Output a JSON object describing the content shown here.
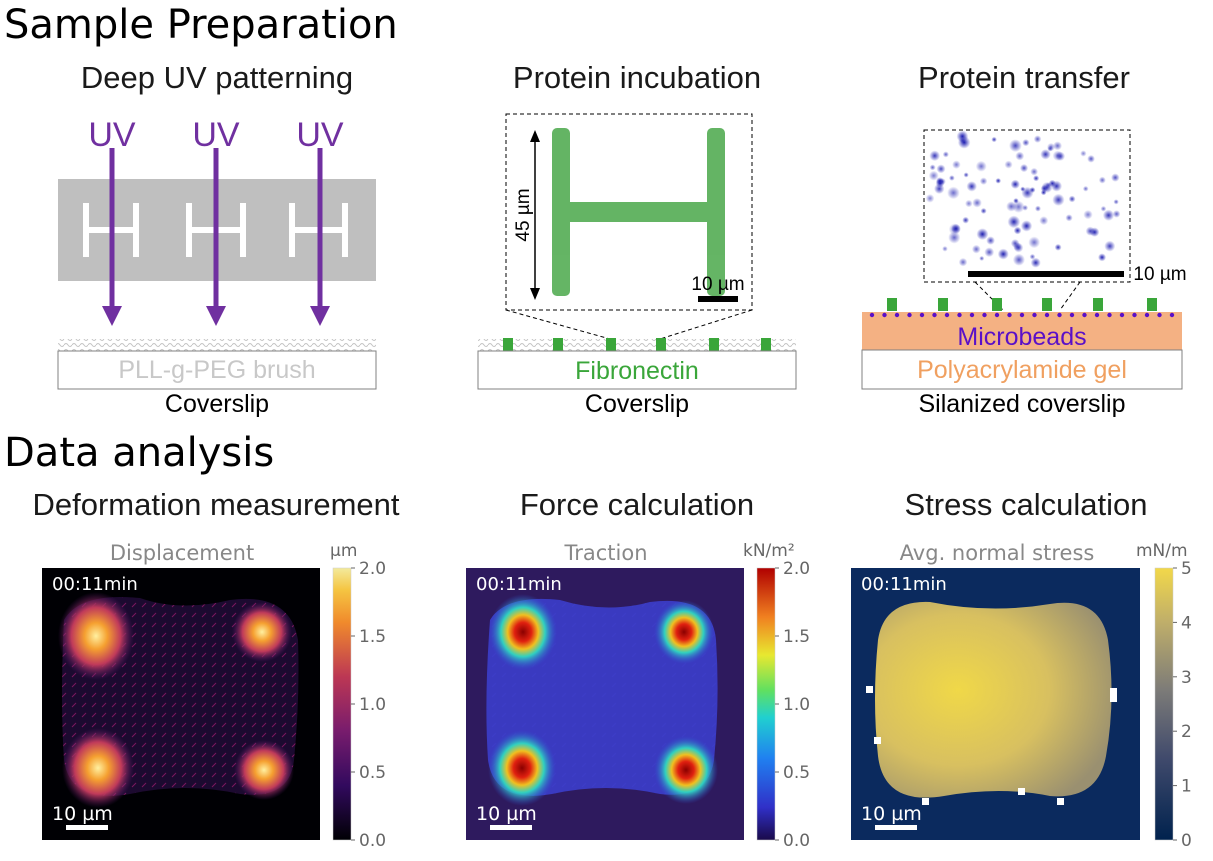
{
  "sections": {
    "sample_preparation": "Sample Preparation",
    "data_analysis": "Data analysis"
  },
  "prep": {
    "patterning": {
      "title": "Deep UV patterning",
      "uv_label": "UV",
      "brush_label": "PLL-g-PEG brush",
      "substrate_label": "Coverslip"
    },
    "incubation": {
      "title": "Protein incubation",
      "dimension_label": "45 µm",
      "scalebar_label": "10 µm",
      "protein_label": "Fibronectin",
      "substrate_label": "Coverslip"
    },
    "transfer": {
      "title": "Protein transfer",
      "scalebar_label": "10 µm",
      "beads_label": "Microbeads",
      "gel_label": "Polyacrylamide gel",
      "substrate_label": "Silanized coverslip"
    }
  },
  "colors": {
    "uv_purple": "#7030a0",
    "fibronectin_green": "#3aa63a",
    "gel_orange": "#f4b183",
    "gel_text": "#f0a060",
    "bead_blue": "#5a10c8",
    "brush_gray": "#c8c8c8",
    "stress_bg": "#0b2a5e"
  },
  "analysis": {
    "deformation": {
      "title": "Deformation measurement",
      "plot_title": "Displacement",
      "timestamp": "00:11min",
      "scalebar_label": "10 µm",
      "colorbar_unit": "µm",
      "colormap": "inferno",
      "colorbar_ticks": [
        "2.0",
        "1.5",
        "1.0",
        "0.5",
        "0.0"
      ]
    },
    "force": {
      "title": "Force calculation",
      "plot_title": "Traction",
      "timestamp": "00:11min",
      "scalebar_label": "10 µm",
      "colorbar_unit": "kN/m²",
      "colormap": "jet",
      "colorbar_ticks": [
        "2.0",
        "1.5",
        "1.0",
        "0.5",
        "0.0"
      ]
    },
    "stress": {
      "title": "Stress calculation",
      "plot_title": "Avg. normal stress",
      "timestamp": "00:11min",
      "scalebar_label": "10 µm",
      "colorbar_unit": "mN/m",
      "colormap": "cividis",
      "colorbar_ticks": [
        "5",
        "4",
        "3",
        "2",
        "1",
        "0"
      ]
    }
  }
}
